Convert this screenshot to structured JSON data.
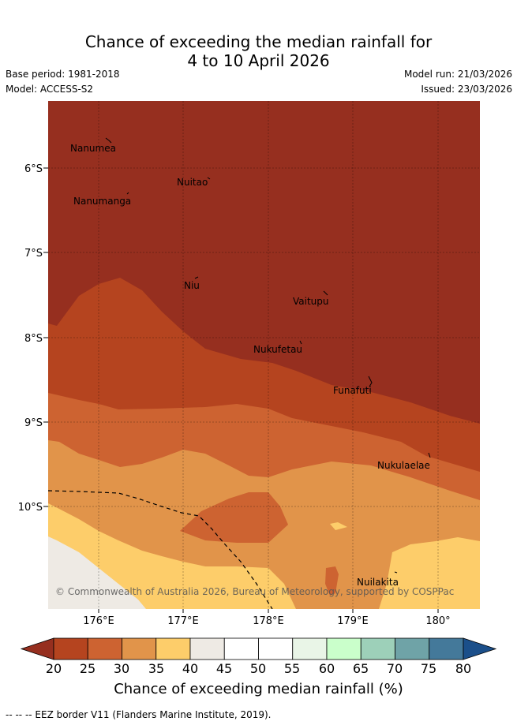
{
  "title_line1": "Chance of exceeding the median rainfall for",
  "title_line2": "4 to 10 April 2026",
  "base_period": "Base period: 1981-2018",
  "model": "Model: ACCESS-S2",
  "model_run": "Model run: 21/03/2026",
  "issued": "Issued: 23/03/2026",
  "lat_labels": [
    "6°S",
    "7°S",
    "8°S",
    "9°S",
    "10°S"
  ],
  "lon_labels": [
    "176°E",
    "177°E",
    "178°E",
    "179°E",
    "180°"
  ],
  "places": [
    "Nanumea",
    "Nuitao",
    "Nanumanga",
    "Niu",
    "Vaitupu",
    "Nukufetau",
    "Funafuti",
    "Nukulaelae",
    "Nuilakita"
  ],
  "copyright": "© Commonwealth of Australia 2026, Bureau of Meteorology, supported by COSPPac",
  "colorbar": {
    "ticks": [
      "20",
      "25",
      "30",
      "35",
      "40",
      "45",
      "50",
      "55",
      "60",
      "65",
      "70",
      "75",
      "80"
    ],
    "colors": [
      "#b5441f",
      "#cd6331",
      "#e1944a",
      "#fdcd6a",
      "#eeeae4",
      "#ffffff",
      "#ffffff",
      "#e9f5e7",
      "#caffcb",
      "#9dd0b9",
      "#6fa3a7",
      "#44799a"
    ],
    "under_color": "#962f1f",
    "over_color": "#1b4f8a",
    "label": "Chance of exceeding median rainfall (%)"
  },
  "footnote": "-- -- -- EEZ border V11 (Flanders Marine Institute, 2019)."
}
